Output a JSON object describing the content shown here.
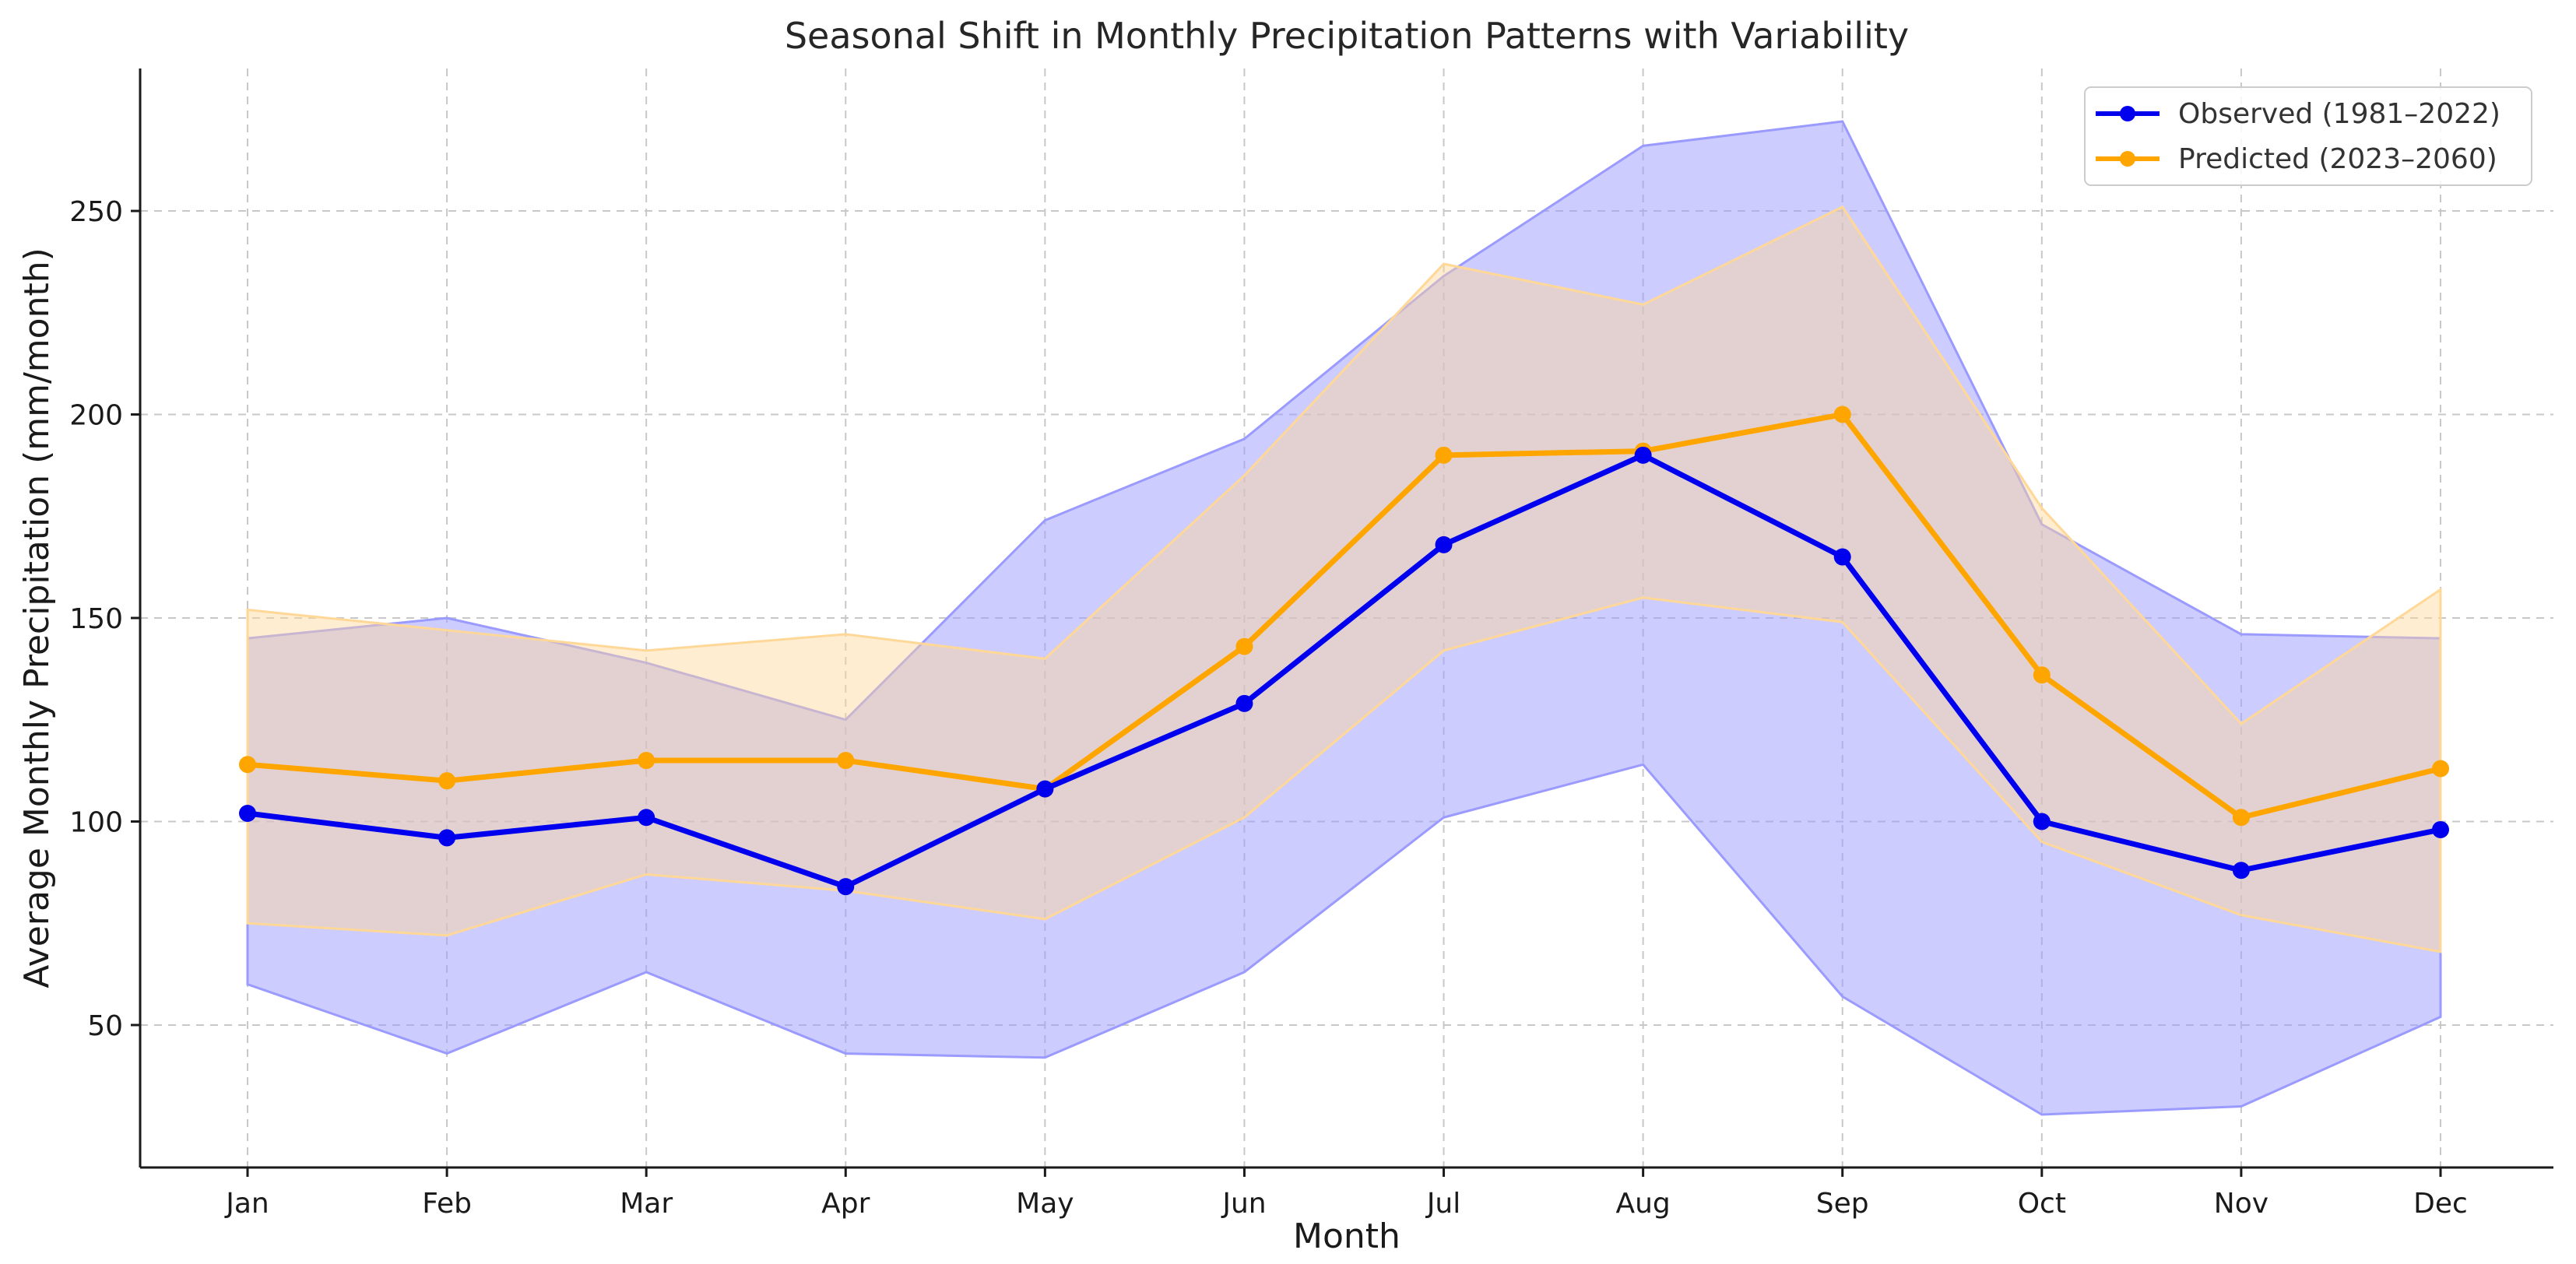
{
  "chart_data": {
    "type": "line",
    "title": "Seasonal Shift in Monthly Precipitation Patterns with Variability",
    "xlabel": "Month",
    "ylabel": "Average Monthly Precipitation (mm/month)",
    "categories": [
      "Jan",
      "Feb",
      "Mar",
      "Apr",
      "May",
      "Jun",
      "Jul",
      "Aug",
      "Sep",
      "Oct",
      "Nov",
      "Dec"
    ],
    "ylim": [
      15,
      285
    ],
    "yticks": [
      50,
      100,
      150,
      200,
      250
    ],
    "grid": true,
    "legend_position": "top-right",
    "series": [
      {
        "name": "Observed (1981–2022)",
        "color": "#0000ee",
        "band_color": "#9a9aff",
        "values": [
          102,
          96,
          101,
          84,
          108,
          129,
          168,
          190,
          165,
          100,
          88,
          98
        ],
        "lower": [
          60,
          43,
          63,
          43,
          42,
          63,
          101,
          114,
          57,
          28,
          30,
          52
        ],
        "upper": [
          145,
          150,
          139,
          125,
          174,
          194,
          234,
          266,
          272,
          173,
          146,
          145
        ]
      },
      {
        "name": "Predicted (2023–2060)",
        "color": "#ffa500",
        "band_color": "#ffd898",
        "values": [
          114,
          110,
          115,
          115,
          108,
          143,
          190,
          191,
          200,
          136,
          101,
          113
        ],
        "lower": [
          75,
          72,
          87,
          83,
          76,
          101,
          142,
          155,
          149,
          95,
          77,
          68
        ],
        "upper": [
          152,
          147,
          142,
          146,
          140,
          185,
          237,
          227,
          251,
          177,
          124,
          157
        ]
      }
    ]
  }
}
